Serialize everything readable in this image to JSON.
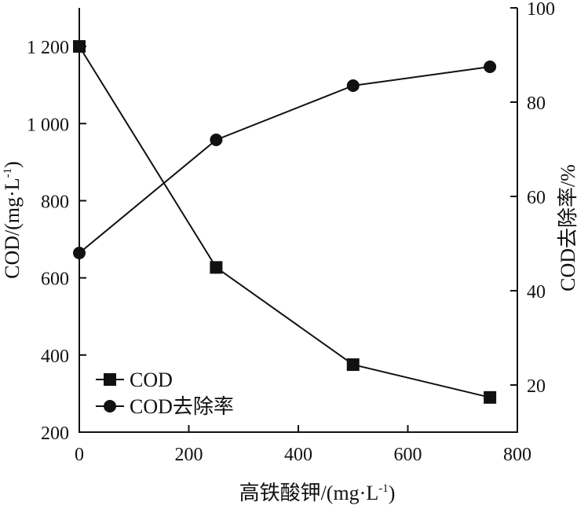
{
  "chart_data": {
    "type": "line",
    "xlabel": "高铁酸钾/(mg·L",
    "xlabel_sup": "-1",
    "xlabel_tail": ")",
    "ylabel_left": "COD/(mg·L",
    "ylabel_left_sup": "-1",
    "ylabel_left_tail": ")",
    "ylabel_right": "COD去除率/%",
    "xlim": [
      0,
      800
    ],
    "ylim_left": [
      200,
      1300
    ],
    "ylim_right": [
      10,
      100
    ],
    "x_ticks": [
      0,
      200,
      400,
      600,
      800
    ],
    "x_tick_labels": [
      "0",
      "200",
      "400",
      "600",
      "800"
    ],
    "y_left_ticks": [
      200,
      400,
      600,
      800,
      1000,
      1200
    ],
    "y_left_tick_labels": [
      "200",
      "400",
      "600",
      "800",
      "1 000",
      "1 200"
    ],
    "y_right_ticks": [
      20,
      40,
      60,
      80,
      100
    ],
    "y_right_tick_labels": [
      "20",
      "40",
      "60",
      "80",
      "100"
    ],
    "grid": false,
    "legend_position": "bottom-left",
    "series": [
      {
        "name": "COD",
        "axis": "left",
        "marker": "square",
        "x": [
          0,
          250,
          500,
          750
        ],
        "values": [
          1200,
          627,
          375,
          290
        ]
      },
      {
        "name": "COD去除率",
        "axis": "right",
        "marker": "circle",
        "x": [
          0,
          250,
          500,
          750
        ],
        "values": [
          48,
          72,
          83.5,
          87.5
        ]
      }
    ]
  }
}
